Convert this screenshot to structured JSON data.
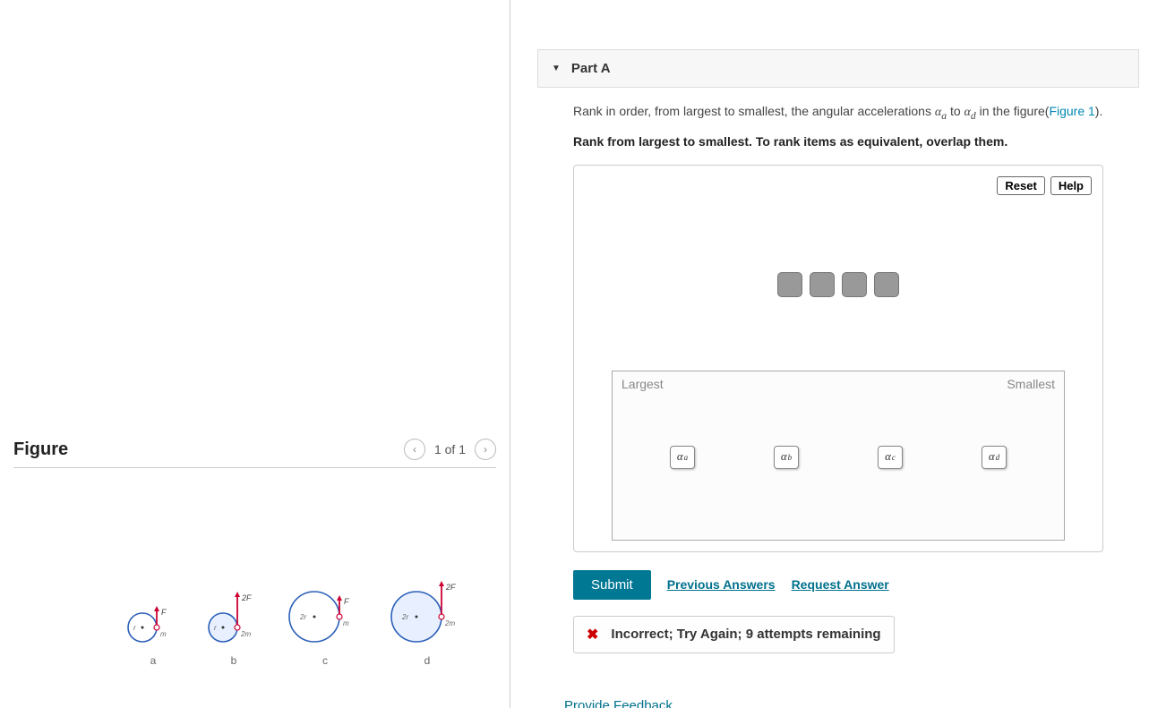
{
  "left": {
    "figure_title": "Figure",
    "nav": {
      "prev": "‹",
      "count": "1 of 1",
      "next": "›"
    },
    "disks": [
      {
        "label": "a",
        "radius_label": "r",
        "mass_label": "m",
        "force_label": "F",
        "r": 16,
        "arrow_h": 20,
        "fill": "#fff"
      },
      {
        "label": "b",
        "radius_label": "r",
        "mass_label": "2m",
        "force_label": "2F",
        "r": 16,
        "arrow_h": 36,
        "fill": "#e8f0ff"
      },
      {
        "label": "c",
        "radius_label": "2r",
        "mass_label": "m",
        "force_label": "F",
        "r": 28,
        "arrow_h": 20,
        "fill": "#fff"
      },
      {
        "label": "d",
        "radius_label": "2r",
        "mass_label": "2m",
        "force_label": "2F",
        "r": 28,
        "arrow_h": 36,
        "fill": "#e8f0ff"
      }
    ]
  },
  "right": {
    "part_label": "Part A",
    "instruction_line1_pre": "Rank in order, from largest to smallest, the angular accelerations ",
    "alpha_a": "α",
    "sub_a": "a",
    "instruction_line1_mid": " to ",
    "alpha_d": "α",
    "sub_d": "d",
    "instruction_line1_post": " in the figure(",
    "figure_link_text": "Figure 1",
    "instruction_line1_end": ").",
    "instruction_line2": "Rank from largest to smallest. To rank items as equivalent, overlap them.",
    "tools": {
      "reset": "Reset",
      "help": "Help"
    },
    "drop_zone": {
      "left_label": "Largest",
      "right_label": "Smallest"
    },
    "chips": [
      {
        "sym": "α",
        "sub": "a"
      },
      {
        "sym": "α",
        "sub": "b"
      },
      {
        "sym": "α",
        "sub": "c"
      },
      {
        "sym": "α",
        "sub": "d"
      }
    ],
    "actions": {
      "submit": "Submit",
      "prev_answers": "Previous Answers",
      "request_answer": "Request Answer"
    },
    "feedback": {
      "text": "Incorrect; Try Again; 9 attempts remaining"
    },
    "provide_feedback": "Provide Feedback"
  }
}
